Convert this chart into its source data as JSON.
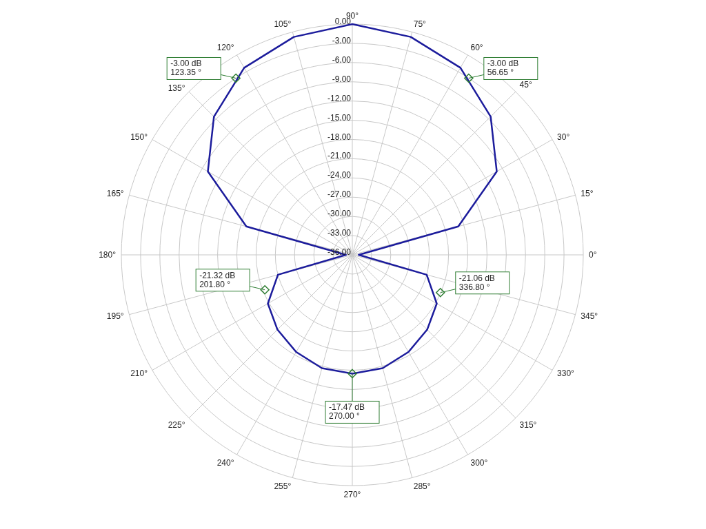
{
  "chart_data": {
    "type": "radar",
    "categories": [
      "90°",
      "75°",
      "60°",
      "45°",
      "30°",
      "15°",
      "0°",
      "345°",
      "330°",
      "315°",
      "300°",
      "285°",
      "270°",
      "255°",
      "240°",
      "225°",
      "210°",
      "195°",
      "180°",
      "165°",
      "150°",
      "135°",
      "120°",
      "105°"
    ],
    "series": [
      {
        "color": "#1c1c9c",
        "values": [
          0,
          -0.8,
          -2.3,
          -5.5,
          -10,
          -18.9,
          -35,
          -24,
          -20.8,
          -19.5,
          -18.5,
          -17.7,
          -17.47,
          -17.7,
          -18.5,
          -19.5,
          -20.8,
          -24,
          -35,
          -18.9,
          -10,
          -5.5,
          -2.3,
          -0.8
        ]
      }
    ],
    "ylim": [
      -36,
      0
    ],
    "yticks": [
      {
        "value": -36,
        "label": "-36.00"
      },
      {
        "value": -33,
        "label": "-33.00"
      },
      {
        "value": -30,
        "label": "-30.00"
      },
      {
        "value": -27,
        "label": "-27.00"
      },
      {
        "value": -24,
        "label": "-24.00"
      },
      {
        "value": -21,
        "label": "-21.00"
      },
      {
        "value": -18,
        "label": "-18.00"
      },
      {
        "value": -15,
        "label": "-15.00"
      },
      {
        "value": -12,
        "label": "-12.00"
      },
      {
        "value": -9,
        "label": "-9.00"
      },
      {
        "value": -6,
        "label": "-6.00"
      },
      {
        "value": -3,
        "label": "-3.00"
      },
      {
        "value": 0,
        "label": "0.00"
      }
    ],
    "grid": true,
    "marker": "none",
    "annotations": [
      "-3.00 dB\n56.65 °",
      "-3.00 dB\n123.35 °",
      "-21.32 dB\n201.80 °",
      "-21.06 dB\n336.80 °",
      "-17.47 dB\n270.00 °"
    ]
  }
}
